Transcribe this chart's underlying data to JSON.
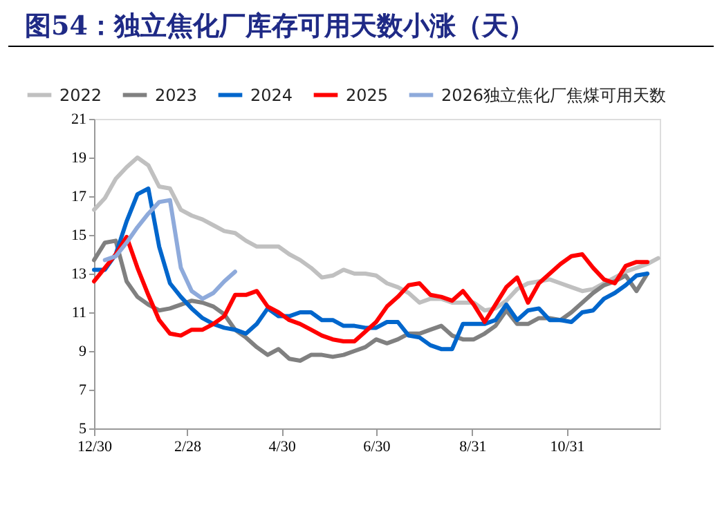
{
  "chart_data": {
    "type": "line",
    "title": "图54：独立焦化厂库存可用天数小涨（天）",
    "legend": "top",
    "grid": false,
    "marker": "none",
    "line_style": "solid",
    "xlim": [
      "2024-12-30",
      "2025-12-30"
    ],
    "xticks": [
      {
        "value": "2024-12-30",
        "label": "12/30"
      },
      {
        "value": "2025-02-28",
        "label": "2/28"
      },
      {
        "value": "2025-04-30",
        "label": "4/30"
      },
      {
        "value": "2025-06-30",
        "label": "6/30"
      },
      {
        "value": "2025-08-31",
        "label": "8/31"
      },
      {
        "value": "2025-10-31",
        "label": "10/31"
      }
    ],
    "ylim": [
      5,
      21
    ],
    "yticks": [
      5,
      7,
      9,
      11,
      13,
      15,
      17,
      19,
      21
    ],
    "x": [
      "2024-12-30",
      "2025-01-06",
      "2025-01-13",
      "2025-01-20",
      "2025-01-27",
      "2025-02-03",
      "2025-02-10",
      "2025-02-17",
      "2025-02-24",
      "2025-03-03",
      "2025-03-10",
      "2025-03-17",
      "2025-03-24",
      "2025-03-31",
      "2025-04-07",
      "2025-04-14",
      "2025-04-21",
      "2025-04-28",
      "2025-05-05",
      "2025-05-12",
      "2025-05-19",
      "2025-05-26",
      "2025-06-02",
      "2025-06-09",
      "2025-06-16",
      "2025-06-23",
      "2025-06-30",
      "2025-07-07",
      "2025-07-14",
      "2025-07-21",
      "2025-07-28",
      "2025-08-04",
      "2025-08-11",
      "2025-08-18",
      "2025-08-25",
      "2025-09-01",
      "2025-09-08",
      "2025-09-15",
      "2025-09-22",
      "2025-09-29",
      "2025-10-06",
      "2025-10-13",
      "2025-10-20",
      "2025-10-27",
      "2025-11-03",
      "2025-11-10",
      "2025-11-17",
      "2025-11-24",
      "2025-12-01",
      "2025-12-08",
      "2025-12-15",
      "2025-12-22",
      "2025-12-29"
    ],
    "series": [
      {
        "name": "2022",
        "color": "#c0c0c0",
        "values": [
          16.3,
          16.9,
          17.9,
          18.5,
          19.0,
          18.6,
          17.5,
          17.4,
          16.3,
          16.0,
          15.8,
          15.5,
          15.2,
          15.1,
          14.7,
          14.4,
          14.4,
          14.4,
          14.0,
          13.7,
          13.3,
          12.8,
          12.9,
          13.2,
          13.0,
          13.0,
          12.9,
          12.5,
          12.3,
          12.0,
          11.5,
          11.7,
          11.7,
          11.5,
          11.5,
          11.5,
          11.1,
          11.2,
          11.6,
          12.2,
          12.5,
          12.6,
          12.7,
          12.5,
          12.3,
          12.1,
          12.2,
          12.5,
          12.8,
          13.1,
          13.3,
          13.5,
          13.8
        ]
      },
      {
        "name": "2023",
        "color": "#808080",
        "values": [
          13.7,
          14.6,
          14.7,
          12.6,
          11.8,
          11.4,
          11.1,
          11.2,
          11.4,
          11.6,
          11.5,
          11.3,
          10.9,
          10.1,
          9.7,
          9.2,
          8.8,
          9.1,
          8.6,
          8.5,
          8.8,
          8.8,
          8.7,
          8.8,
          9.0,
          9.2,
          9.6,
          9.4,
          9.6,
          9.9,
          9.9,
          10.1,
          10.3,
          9.8,
          9.6,
          9.6,
          9.9,
          10.3,
          11.1,
          10.4,
          10.4,
          10.7,
          10.7,
          10.6,
          11.0,
          11.5,
          12.0,
          12.4,
          12.6,
          12.9,
          12.1,
          13.0,
          null
        ]
      },
      {
        "name": "2024",
        "color": "#0066cc",
        "values": [
          13.2,
          13.2,
          14.0,
          15.7,
          17.1,
          17.4,
          14.4,
          12.5,
          11.8,
          11.2,
          10.7,
          10.4,
          10.2,
          10.1,
          9.9,
          10.4,
          11.2,
          10.8,
          10.8,
          11.0,
          11.0,
          10.6,
          10.6,
          10.3,
          10.3,
          10.2,
          10.2,
          10.5,
          10.5,
          9.8,
          9.7,
          9.3,
          9.1,
          9.1,
          10.4,
          10.4,
          10.4,
          10.6,
          11.4,
          10.6,
          11.1,
          11.2,
          10.6,
          10.6,
          10.5,
          11.0,
          11.1,
          11.7,
          12.0,
          12.4,
          12.9,
          13.0,
          null
        ]
      },
      {
        "name": "2025",
        "color": "#ff0000",
        "values": [
          12.6,
          13.3,
          14.0,
          14.9,
          13.3,
          11.9,
          10.6,
          9.9,
          9.8,
          10.1,
          10.1,
          10.4,
          10.8,
          11.9,
          11.9,
          12.1,
          11.3,
          11.0,
          10.6,
          10.4,
          10.1,
          9.8,
          9.6,
          9.5,
          9.5,
          10.0,
          10.5,
          11.3,
          11.8,
          12.4,
          12.5,
          11.9,
          11.8,
          11.6,
          12.1,
          11.4,
          10.5,
          11.4,
          12.3,
          12.8,
          11.5,
          12.5,
          13.0,
          13.5,
          13.9,
          14.0,
          13.3,
          12.7,
          12.5,
          13.4,
          13.6,
          13.6,
          null
        ]
      },
      {
        "name": "2026独立焦化厂焦煤可用天数",
        "color": "#8eaadb",
        "values": [
          null,
          13.7,
          13.9,
          14.6,
          15.4,
          16.1,
          16.7,
          16.8,
          13.3,
          12.1,
          11.7,
          12.0,
          12.6,
          13.1,
          null,
          null,
          null,
          null,
          null,
          null,
          null,
          null,
          null,
          null,
          null,
          null,
          null,
          null,
          null,
          null,
          null,
          null,
          null,
          null,
          null,
          null,
          null,
          null,
          null,
          null,
          null,
          null,
          null,
          null,
          null,
          null,
          null,
          null,
          null,
          null,
          null,
          null,
          null
        ]
      }
    ]
  }
}
